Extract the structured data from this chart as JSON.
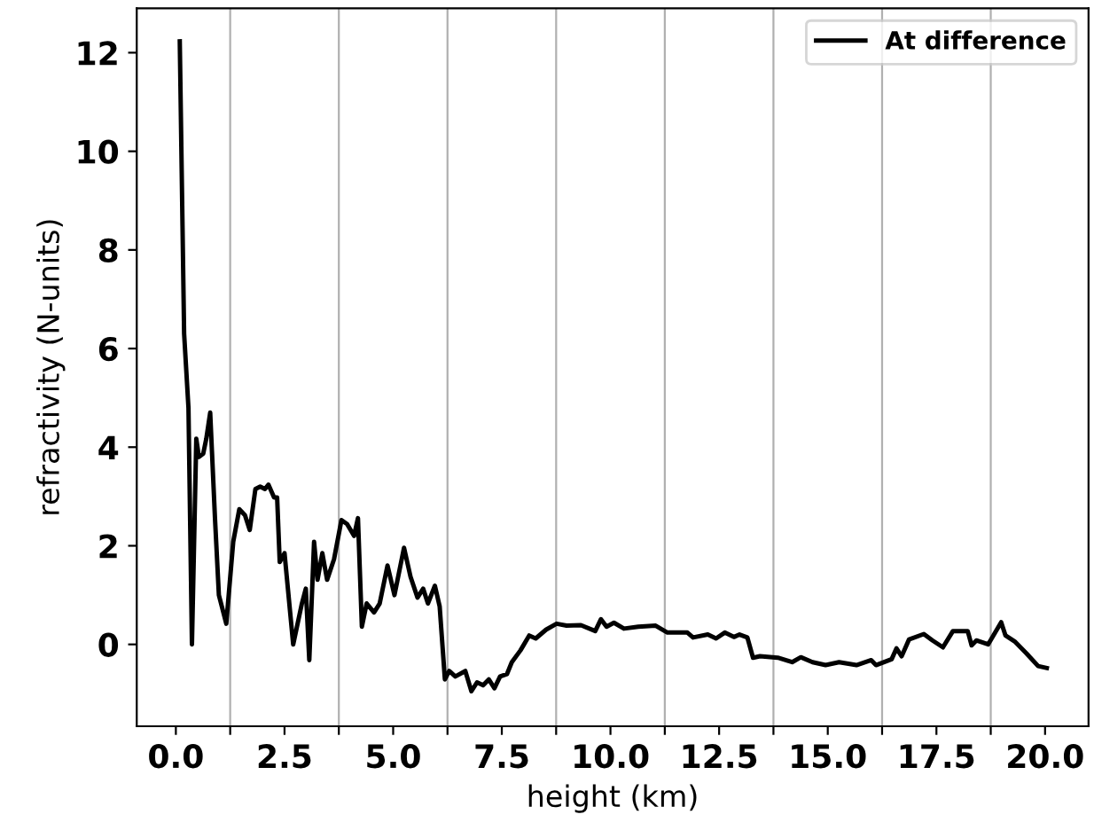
{
  "chart_data": {
    "type": "line",
    "xlabel": "height (km)",
    "ylabel": "refractivity (N-units)",
    "xlim": [
      -0.9,
      21.0
    ],
    "ylim": [
      -1.66,
      12.9
    ],
    "xticks": [
      {
        "value": 0.0,
        "label": "0.0"
      },
      {
        "value": 1.25,
        "label": null
      },
      {
        "value": 2.5,
        "label": "2.5"
      },
      {
        "value": 3.75,
        "label": null
      },
      {
        "value": 5.0,
        "label": "5.0"
      },
      {
        "value": 6.25,
        "label": null
      },
      {
        "value": 7.5,
        "label": "7.5"
      },
      {
        "value": 8.75,
        "label": null
      },
      {
        "value": 10.0,
        "label": "10.0"
      },
      {
        "value": 11.25,
        "label": null
      },
      {
        "value": 12.5,
        "label": "12.5"
      },
      {
        "value": 13.75,
        "label": null
      },
      {
        "value": 15.0,
        "label": "15.0"
      },
      {
        "value": 16.25,
        "label": null
      },
      {
        "value": 17.5,
        "label": "17.5"
      },
      {
        "value": 18.75,
        "label": null
      },
      {
        "value": 20.0,
        "label": "20.0"
      }
    ],
    "yticks": [
      0,
      2,
      4,
      6,
      8,
      10,
      12
    ],
    "ref_lines": [
      {
        "axis": "x",
        "value": 1.25,
        "color": "#b0b0b0"
      },
      {
        "axis": "x",
        "value": 3.75,
        "color": "#b0b0b0"
      },
      {
        "axis": "x",
        "value": 6.25,
        "color": "#b0b0b0"
      },
      {
        "axis": "x",
        "value": 8.75,
        "color": "#b0b0b0"
      },
      {
        "axis": "x",
        "value": 11.25,
        "color": "#b0b0b0"
      },
      {
        "axis": "x",
        "value": 13.75,
        "color": "#b0b0b0"
      },
      {
        "axis": "x",
        "value": 16.25,
        "color": "#b0b0b0"
      },
      {
        "axis": "x",
        "value": 18.75,
        "color": "#b0b0b0"
      }
    ],
    "legend": "top right",
    "marker": "none",
    "line_style": "solid",
    "series": [
      {
        "name": "At difference",
        "color": "#000000",
        "x": [
          0.09,
          0.19,
          0.29,
          0.37,
          0.47,
          0.53,
          0.63,
          0.7,
          0.79,
          0.9,
          0.99,
          1.16,
          1.32,
          1.46,
          1.59,
          1.7,
          1.83,
          1.94,
          2.05,
          2.13,
          2.26,
          2.33,
          2.39,
          2.5,
          2.7,
          2.9,
          2.99,
          3.07,
          3.18,
          3.26,
          3.37,
          3.48,
          3.64,
          3.81,
          3.94,
          4.1,
          4.19,
          4.28,
          4.39,
          4.56,
          4.69,
          4.87,
          5.03,
          5.25,
          5.4,
          5.56,
          5.69,
          5.8,
          5.96,
          6.07,
          6.19,
          6.29,
          6.43,
          6.66,
          6.8,
          6.93,
          7.07,
          7.2,
          7.33,
          7.46,
          7.62,
          7.73,
          7.93,
          8.13,
          8.28,
          8.52,
          8.76,
          8.99,
          9.32,
          9.65,
          9.78,
          9.91,
          10.08,
          10.31,
          10.64,
          11.04,
          11.31,
          11.77,
          11.9,
          12.24,
          12.43,
          12.63,
          12.84,
          12.97,
          13.15,
          13.28,
          13.44,
          13.85,
          14.18,
          14.38,
          14.65,
          14.95,
          15.26,
          15.66,
          16.0,
          16.11,
          16.47,
          16.58,
          16.7,
          16.87,
          17.21,
          17.41,
          17.65,
          17.88,
          18.22,
          18.31,
          18.42,
          18.69,
          18.99,
          19.09,
          19.3,
          19.57,
          19.84,
          20.04
        ],
        "values": [
          12.23,
          6.3,
          4.8,
          0,
          4.17,
          3.8,
          3.87,
          4.17,
          4.7,
          2.56,
          1.0,
          0.42,
          2.08,
          2.74,
          2.62,
          2.32,
          3.15,
          3.2,
          3.15,
          3.24,
          2.98,
          2.98,
          1.67,
          1.85,
          0,
          0.83,
          1.13,
          -0.32,
          2.08,
          1.31,
          1.85,
          1.31,
          1.73,
          2.52,
          2.44,
          2.2,
          2.56,
          0.36,
          0.83,
          0.65,
          0.83,
          1.6,
          1.0,
          1.96,
          1.37,
          0.95,
          1.13,
          0.83,
          1.19,
          0.77,
          -0.71,
          -0.54,
          -0.65,
          -0.54,
          -0.95,
          -0.77,
          -0.83,
          -0.71,
          -0.89,
          -0.65,
          -0.6,
          -0.36,
          -0.12,
          0.18,
          0.12,
          0.3,
          0.42,
          0.38,
          0.39,
          0.27,
          0.51,
          0.36,
          0.44,
          0.32,
          0.36,
          0.38,
          0.24,
          0.24,
          0.14,
          0.2,
          0.12,
          0.24,
          0.15,
          0.2,
          0.14,
          -0.27,
          -0.24,
          -0.27,
          -0.36,
          -0.26,
          -0.36,
          -0.42,
          -0.36,
          -0.42,
          -0.32,
          -0.42,
          -0.3,
          -0.08,
          -0.24,
          0.1,
          0.21,
          0.08,
          -0.06,
          0.27,
          0.27,
          -0.02,
          0.08,
          0,
          0.45,
          0.18,
          0.06,
          -0.18,
          -0.44,
          -0.48
        ]
      }
    ]
  }
}
